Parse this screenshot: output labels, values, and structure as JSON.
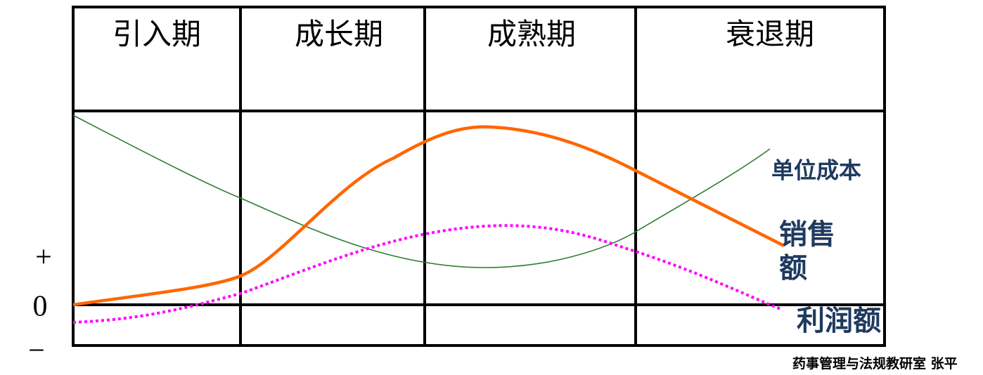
{
  "stages": [
    "引入期",
    "成长期",
    "成熟期",
    "衰退期"
  ],
  "axis_signs": [
    "+",
    "0",
    "−"
  ],
  "curve_labels": {
    "unit_cost": "单位成本",
    "sales": [
      "销售",
      "额"
    ],
    "profit": "利润额"
  },
  "footer": "药事管理与法规教研室 张平"
}
